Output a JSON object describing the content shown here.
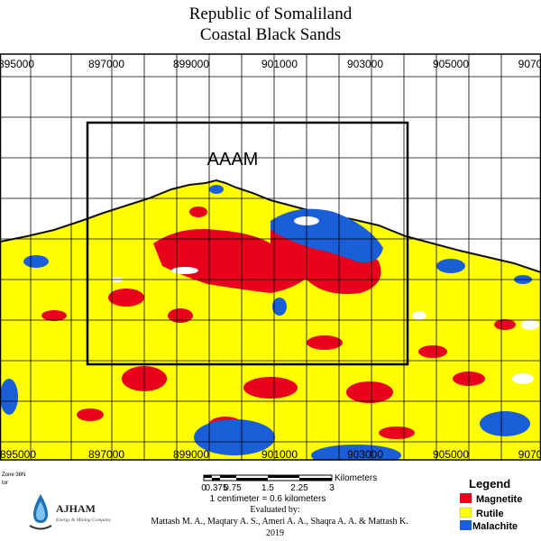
{
  "map": {
    "title_line1": "Republic of Somaliland",
    "title_line2": "Coastal Black Sands",
    "area_label": "AAAM",
    "x_ticks_top": [
      "895000",
      "897000",
      "899000",
      "901000",
      "903000",
      "905000",
      "9070"
    ],
    "x_ticks_bottom": [
      "895000",
      "897000",
      "899000",
      "901000",
      "903000",
      "905000",
      "9070"
    ],
    "projection_fragment_1": "Zone 38N",
    "projection_fragment_2": "tor",
    "colors": {
      "land": "#ffff00",
      "sea": "#ffffff",
      "magnetite": "#e8001c",
      "rutile": "#ffff00",
      "malachite": "#1a5fd8",
      "grid": "#000000"
    }
  },
  "scale_bar": {
    "ticks": [
      "0",
      "0.375",
      "0.75",
      "1.5",
      "2.25",
      "3"
    ],
    "unit": "Kilometers",
    "note": "1 centimeter = 0.6 kilometers"
  },
  "credits": {
    "evaluated_by": "Evaluated by:",
    "authors": "Mattash M. A., Maqtary A. S., Ameri A. A., Shaqra A. A. &  Mattash K.",
    "year": "2019"
  },
  "logo": {
    "name": "AJHAM",
    "subtitle": "Energy & Mining Company",
    "icon": "water-drop-icon"
  },
  "legend": {
    "title": "Legend",
    "items": [
      {
        "label": "Magnetite",
        "color": "#e8001c"
      },
      {
        "label": "Rutile",
        "color": "#ffff00"
      },
      {
        "label": "Malachite",
        "color": "#1a5fd8"
      }
    ]
  }
}
